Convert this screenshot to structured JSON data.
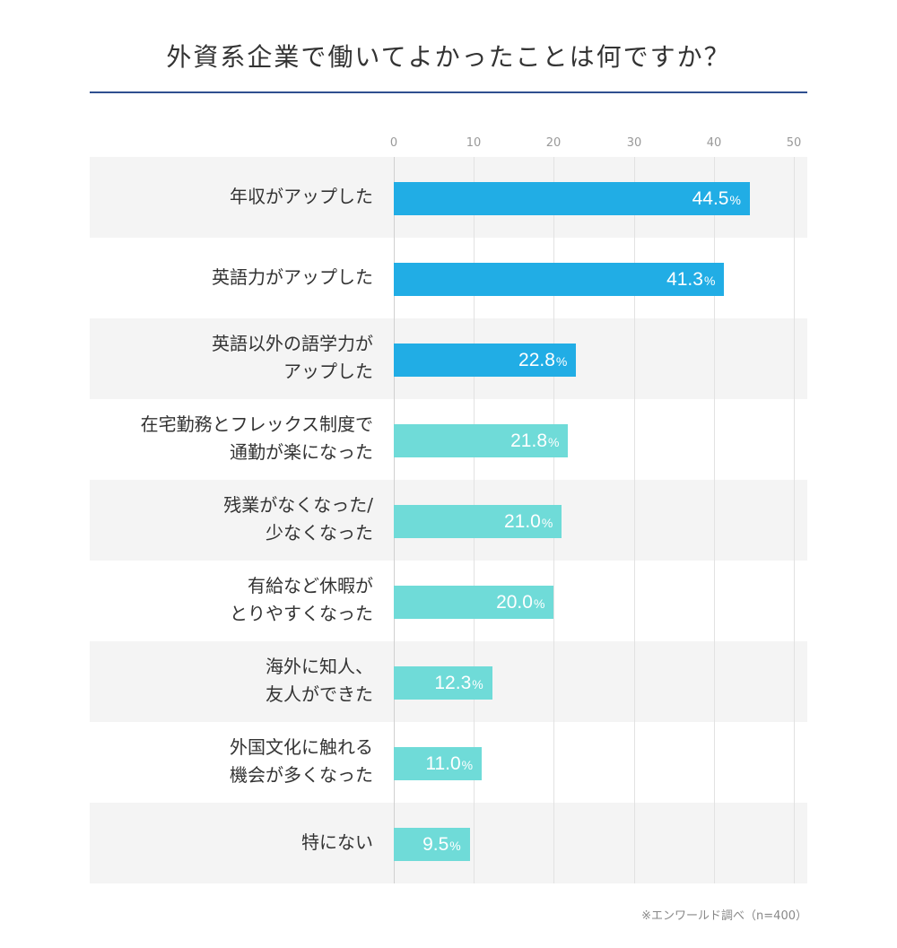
{
  "title": "外資系企業で働いてよかったことは何ですか？",
  "source_note": "※エンワールド調べ（n=400）",
  "colors": {
    "primary_bar": "#21ade5",
    "secondary_bar": "#6fdbd8",
    "row_stripe": "#f4f4f4",
    "title_rule": "#2f4f8f"
  },
  "chart_data": {
    "type": "bar",
    "orientation": "horizontal",
    "title": "外資系企業で働いてよかったことは何ですか？",
    "xlim": [
      0,
      50
    ],
    "xticks": [
      "0",
      "10",
      "20",
      "30",
      "40",
      "50"
    ],
    "grid": true,
    "unit": "%",
    "categories": [
      [
        "年収がアップした"
      ],
      [
        "英語力がアップした"
      ],
      [
        "英語以外の語学力が",
        "アップした"
      ],
      [
        "在宅勤務とフレックス制度で",
        "通勤が楽になった"
      ],
      [
        "残業がなくなった/",
        "少なくなった"
      ],
      [
        "有給など休暇が",
        "とりやすくなった"
      ],
      [
        "海外に知人、",
        "友人ができた"
      ],
      [
        "外国文化に触れる",
        "機会が多くなった"
      ],
      [
        "特にない"
      ]
    ],
    "values": [
      44.5,
      41.3,
      22.8,
      21.8,
      21.0,
      20.0,
      12.3,
      11.0,
      9.5
    ],
    "value_labels": [
      "44.5",
      "41.3",
      "22.8",
      "21.8",
      "21.0",
      "20.0",
      "12.3",
      "11.0",
      "9.5"
    ],
    "highlight": [
      "primary",
      "primary",
      "primary",
      "secondary",
      "secondary",
      "secondary",
      "secondary",
      "secondary",
      "secondary"
    ]
  }
}
